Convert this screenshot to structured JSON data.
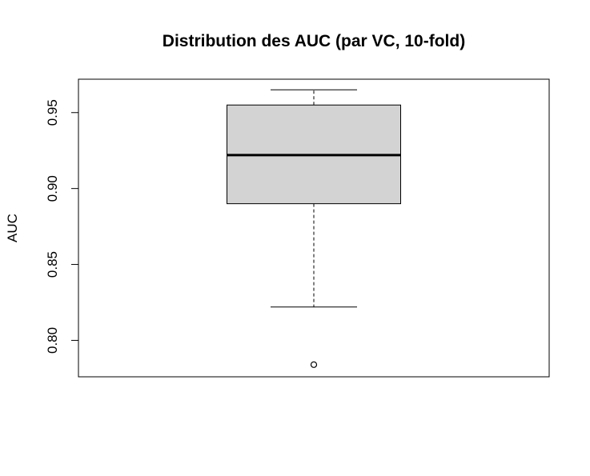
{
  "chart_data": {
    "type": "boxplot",
    "title": "Distribution des AUC (par VC, 10-fold)",
    "xlabel": "",
    "ylabel": "AUC",
    "ylim": [
      0.776,
      0.972
    ],
    "yticks": [
      0.8,
      0.85,
      0.9,
      0.95
    ],
    "ytick_labels": [
      "0.80",
      "0.85",
      "0.90",
      "0.95"
    ],
    "grid": false,
    "box": {
      "min": 0.822,
      "q1": 0.89,
      "median": 0.922,
      "q3": 0.955,
      "max": 0.965,
      "outliers": [
        0.784
      ]
    },
    "colors": {
      "box_fill": "#d3d3d3",
      "line": "#000000",
      "background": "#ffffff"
    }
  }
}
